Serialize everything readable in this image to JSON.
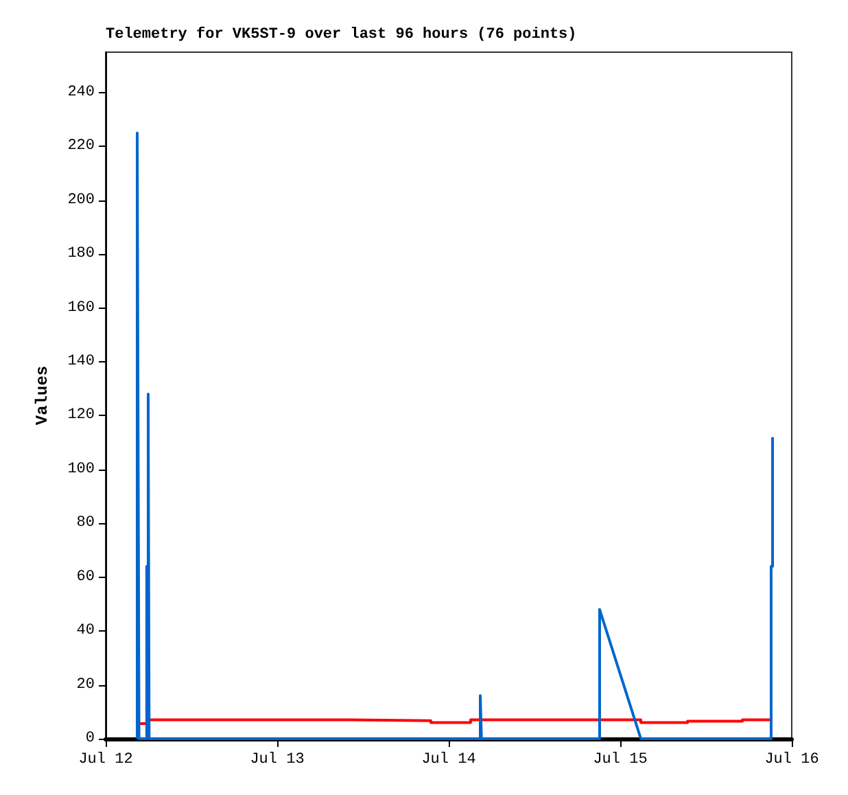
{
  "chart_data": {
    "type": "line",
    "title": "Telemetry for VK5ST-9 over last 96 hours (76 points)",
    "ylabel": "Values",
    "series": [
      {
        "type": "step",
        "color": "#ff0000",
        "x": [
          "--07-12T04:48",
          "--07-12T05:57",
          "--07-13T10:15",
          "--07-13T21:30",
          "--07-14T03:04",
          "--07-15T02:53",
          "--07-15T09:25",
          "--07-15T17:06",
          "--07-15T21:19"
        ],
        "values": [
          5.6,
          7,
          6.7,
          6,
          7,
          6,
          6.5,
          7,
          7
        ]
      },
      {
        "color": "#0066cc",
        "x": [
          "--07-12T04:25",
          "--07-12T04:25",
          "--07-12T04:40",
          "--07-12T05:45",
          "--07-12T05:45",
          "--07-12T05:57",
          "--07-12T05:57",
          "--07-12T06:05",
          "--07-14T04:25",
          "--07-14T04:25",
          "--07-14T04:35",
          "--07-14T21:07",
          "--07-14T21:07",
          "--07-15T02:53",
          "--07-15T21:07",
          "--07-15T21:07",
          "--07-15T21:19",
          "--07-15T21:19"
        ],
        "values": [
          0,
          225,
          0,
          0,
          64,
          64,
          128,
          0,
          0,
          16,
          0,
          0,
          48,
          0,
          0,
          64,
          64,
          112
        ]
      }
    ],
    "xlim": [
      "--07-12",
      "--07-16"
    ],
    "xticks": [
      {
        "value": "--07-12",
        "label": "Jul 12"
      },
      {
        "value": "--07-13",
        "label": "Jul 13"
      },
      {
        "value": "--07-14",
        "label": "Jul 14"
      },
      {
        "value": "--07-15",
        "label": "Jul 15"
      },
      {
        "value": "--07-16",
        "label": "Jul 16"
      }
    ],
    "ylim": [
      0,
      255
    ],
    "yticks": [
      0,
      20,
      40,
      60,
      80,
      100,
      120,
      140,
      160,
      180,
      200,
      220,
      240
    ],
    "grid": false,
    "marker": "none",
    "line_style": "solid"
  }
}
